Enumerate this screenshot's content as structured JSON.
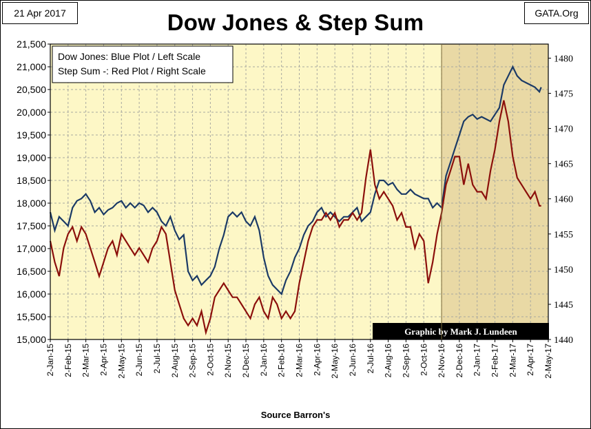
{
  "header": {
    "date": "21 Apr 2017",
    "source_tag": "GATA.Org"
  },
  "chart_data": {
    "type": "line",
    "title": "Dow Jones & Step Sum",
    "xlabel": "Source Barron's",
    "credit": "Graphic by Mark J. Lundeen",
    "legend": [
      "Dow Jones: Blue Plot / Left Scale",
      "Step Sum -: Red Plot / Right Scale"
    ],
    "x_ticks": [
      "2-Jan-15",
      "2-Feb-15",
      "2-Mar-15",
      "2-Apr-15",
      "2-May-15",
      "2-Jun-15",
      "2-Jul-15",
      "2-Aug-15",
      "2-Sep-15",
      "2-Oct-15",
      "2-Nov-15",
      "2-Dec-15",
      "2-Jan-16",
      "2-Feb-16",
      "2-Mar-16",
      "2-Apr-16",
      "2-May-16",
      "2-Jun-16",
      "2-Jul-16",
      "2-Aug-16",
      "2-Sep-16",
      "2-Oct-16",
      "2-Nov-16",
      "2-Dec-16",
      "2-Jan-17",
      "2-Feb-17",
      "2-Mar-17",
      "2-Apr-17",
      "2-May-17"
    ],
    "y_left": {
      "min": 15000,
      "max": 21500,
      "step": 500,
      "tick_labels": [
        "15,000",
        "15,500",
        "16,000",
        "16,500",
        "17,000",
        "17,500",
        "18,000",
        "18,500",
        "19,000",
        "19,500",
        "20,000",
        "20,500",
        "21,000",
        "21,500"
      ]
    },
    "y_right": {
      "min": 1440,
      "max": 1482,
      "tick_values": [
        1440,
        1445,
        1450,
        1455,
        1460,
        1465,
        1470,
        1475,
        1480
      ],
      "tick_labels": [
        "1440",
        "1445",
        "1450",
        "1455",
        "1460",
        "1465",
        "1470",
        "1475",
        "1480"
      ]
    },
    "shaded_region": {
      "from_month": 22,
      "to_month": 28
    },
    "series": [
      {
        "name": "Dow Jones",
        "axis": "left",
        "color": "#1b3a66",
        "month": [
          0,
          0.25,
          0.5,
          0.75,
          1,
          1.25,
          1.5,
          1.75,
          2,
          2.25,
          2.5,
          2.75,
          3,
          3.25,
          3.5,
          3.75,
          4,
          4.25,
          4.5,
          4.75,
          5,
          5.25,
          5.5,
          5.75,
          6,
          6.25,
          6.5,
          6.75,
          7,
          7.25,
          7.5,
          7.75,
          8,
          8.25,
          8.5,
          8.75,
          9,
          9.25,
          9.5,
          9.75,
          10,
          10.25,
          10.5,
          10.75,
          11,
          11.25,
          11.5,
          11.75,
          12,
          12.25,
          12.5,
          12.75,
          13,
          13.25,
          13.5,
          13.75,
          14,
          14.25,
          14.5,
          14.75,
          15,
          15.25,
          15.5,
          15.75,
          16,
          16.25,
          16.5,
          16.75,
          17,
          17.25,
          17.5,
          17.75,
          18,
          18.25,
          18.5,
          18.75,
          19,
          19.25,
          19.5,
          19.75,
          20,
          20.25,
          20.5,
          20.75,
          21,
          21.25,
          21.5,
          21.75,
          22,
          22.25,
          22.5,
          22.75,
          23,
          23.25,
          23.5,
          23.75,
          24,
          24.25,
          24.5,
          24.75,
          25,
          25.25,
          25.5,
          25.75,
          26,
          26.25,
          26.5,
          26.75,
          27,
          27.25,
          27.5,
          27.6
        ],
        "values": [
          17800,
          17400,
          17700,
          17600,
          17500,
          17900,
          18050,
          18100,
          18200,
          18050,
          17800,
          17900,
          17750,
          17850,
          17900,
          18000,
          18050,
          17900,
          18000,
          17900,
          18000,
          17950,
          17800,
          17900,
          17800,
          17600,
          17500,
          17700,
          17400,
          17200,
          17300,
          16500,
          16300,
          16400,
          16200,
          16300,
          16400,
          16600,
          17000,
          17300,
          17700,
          17800,
          17700,
          17800,
          17600,
          17500,
          17700,
          17400,
          16800,
          16400,
          16200,
          16100,
          16000,
          16300,
          16500,
          16800,
          17000,
          17300,
          17500,
          17600,
          17800,
          17900,
          17700,
          17800,
          17700,
          17600,
          17700,
          17700,
          17800,
          17900,
          17600,
          17700,
          17800,
          18200,
          18500,
          18500,
          18400,
          18450,
          18300,
          18200,
          18200,
          18300,
          18200,
          18150,
          18100,
          18100,
          17900,
          18000,
          17900,
          18600,
          18900,
          19200,
          19500,
          19800,
          19900,
          19950,
          19850,
          19900,
          19850,
          19800,
          19950,
          20100,
          20600,
          20800,
          21000,
          20800,
          20700,
          20650,
          20600,
          20550,
          20450,
          20550
        ]
      },
      {
        "name": "Step Sum",
        "axis": "right",
        "color": "#8b0f0b",
        "month": [
          0,
          0.25,
          0.5,
          0.75,
          1,
          1.25,
          1.5,
          1.75,
          2,
          2.25,
          2.5,
          2.75,
          3,
          3.25,
          3.5,
          3.75,
          4,
          4.25,
          4.5,
          4.75,
          5,
          5.25,
          5.5,
          5.75,
          6,
          6.25,
          6.5,
          6.75,
          7,
          7.25,
          7.5,
          7.75,
          8,
          8.25,
          8.5,
          8.75,
          9,
          9.25,
          9.5,
          9.75,
          10,
          10.25,
          10.5,
          10.75,
          11,
          11.25,
          11.5,
          11.75,
          12,
          12.25,
          12.5,
          12.75,
          13,
          13.25,
          13.5,
          13.75,
          14,
          14.25,
          14.5,
          14.75,
          15,
          15.25,
          15.5,
          15.75,
          16,
          16.25,
          16.5,
          16.75,
          17,
          17.25,
          17.5,
          17.75,
          18,
          18.25,
          18.5,
          18.75,
          19,
          19.25,
          19.5,
          19.75,
          20,
          20.25,
          20.5,
          20.75,
          21,
          21.25,
          21.5,
          21.75,
          22,
          22.25,
          22.5,
          22.75,
          23,
          23.25,
          23.5,
          23.75,
          24,
          24.25,
          24.5,
          24.75,
          25,
          25.25,
          25.5,
          25.75,
          26,
          26.25,
          26.5,
          26.75,
          27,
          27.25,
          27.5,
          27.6
        ],
        "values": [
          1454,
          1451,
          1449,
          1453,
          1455,
          1456,
          1454,
          1456,
          1455,
          1453,
          1451,
          1449,
          1451,
          1453,
          1454,
          1452,
          1455,
          1454,
          1453,
          1452,
          1453,
          1452,
          1451,
          1453,
          1454,
          1456,
          1455,
          1451,
          1447,
          1445,
          1443,
          1442,
          1443,
          1442,
          1444,
          1441,
          1443,
          1446,
          1447,
          1448,
          1447,
          1446,
          1446,
          1445,
          1444,
          1443,
          1445,
          1446,
          1444,
          1443,
          1446,
          1445,
          1443,
          1444,
          1443,
          1444,
          1448,
          1451,
          1454,
          1456,
          1457,
          1457,
          1458,
          1457,
          1458,
          1456,
          1457,
          1457,
          1458,
          1457,
          1458,
          1463,
          1467,
          1462,
          1460,
          1461,
          1460,
          1459,
          1457,
          1458,
          1456,
          1456,
          1453,
          1455,
          1454,
          1448,
          1451,
          1455,
          1458,
          1462,
          1464,
          1466,
          1466,
          1462,
          1465,
          1462,
          1461,
          1461,
          1460,
          1464,
          1467,
          1471,
          1474,
          1471,
          1466,
          1463,
          1462,
          1461,
          1460,
          1461,
          1459,
          1459
        ]
      }
    ]
  }
}
